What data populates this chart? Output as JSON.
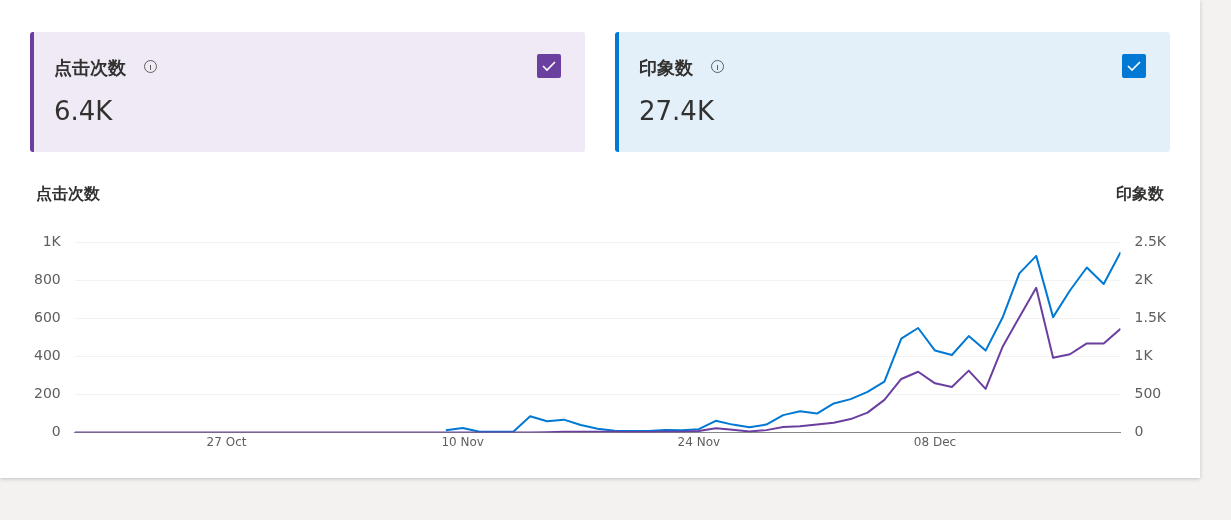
{
  "chart_data": [
    {
      "type": "other",
      "categories": [
        "点击次数",
        "印象数"
      ],
      "value_labels": [
        "6.4K",
        "27.4K"
      ],
      "colors": [
        "#6b3fa0",
        "#0078d4"
      ]
    },
    {
      "type": "line",
      "ylabel": "点击次数",
      "y2label": "印象数",
      "x": [
        "--10-18",
        "--10-19",
        "--10-20",
        "--10-21",
        "--10-22",
        "--10-23",
        "--10-24",
        "--10-25",
        "--10-26",
        "--10-27",
        "--10-28",
        "--10-29",
        "--10-30",
        "--10-31",
        "--11-01",
        "--11-02",
        "--11-03",
        "--11-04",
        "--11-05",
        "--11-06",
        "--11-07",
        "--11-08",
        "--11-09",
        "--11-10",
        "--11-11",
        "--11-12",
        "--11-13",
        "--11-14",
        "--11-15",
        "--11-16",
        "--11-17",
        "--11-18",
        "--11-19",
        "--11-20",
        "--11-21",
        "--11-22",
        "--11-23",
        "--11-24",
        "--11-25",
        "--11-26",
        "--11-27",
        "--11-28",
        "--11-29",
        "--11-30",
        "--12-01",
        "--12-02",
        "--12-03",
        "--12-04",
        "--12-05",
        "--12-06",
        "--12-07",
        "--12-08",
        "--12-09",
        "--12-10",
        "--12-11",
        "--12-12",
        "--12-13",
        "--12-14",
        "--12-15",
        "--12-16",
        "--12-17",
        "--12-18",
        "--12-19"
      ],
      "series": [
        {
          "color": "#6b3fa0",
          "values": [
            0,
            0,
            0,
            0,
            0,
            0,
            0,
            0,
            0,
            0,
            0,
            0,
            0,
            0,
            0,
            0,
            0,
            0,
            0,
            0,
            0,
            0,
            0,
            0,
            0,
            0,
            0,
            1,
            2,
            4,
            5,
            5,
            5,
            3,
            3,
            5,
            5,
            8,
            23,
            15,
            6,
            13,
            29,
            33,
            42,
            52,
            71,
            105,
            172,
            282,
            320,
            259,
            240,
            326,
            230,
            450,
            607,
            761,
            393,
            412,
            469,
            469,
            546
          ]
        },
        {
          "color": "#0078d4",
          "axis": "y2",
          "values": [
            null,
            null,
            null,
            null,
            null,
            null,
            null,
            null,
            null,
            null,
            null,
            null,
            null,
            null,
            null,
            null,
            null,
            null,
            null,
            null,
            null,
            null,
            30,
            60,
            10,
            10,
            10,
            215,
            150,
            170,
            100,
            50,
            25,
            20,
            20,
            35,
            30,
            45,
            155,
            105,
            70,
            105,
            230,
            280,
            250,
            383,
            440,
            536,
            670,
            1236,
            1375,
            1078,
            1020,
            1269,
            1078,
            1509,
            2093,
            2323,
            1518,
            1868,
            2170,
            1954,
            2371
          ]
        }
      ],
      "xlim": [
        "--10-18",
        "--12-19"
      ],
      "xticks": [
        {
          "value": "--10-27",
          "label": "27 Oct"
        },
        {
          "value": "--11-10",
          "label": "10 Nov"
        },
        {
          "value": "--11-24",
          "label": "24 Nov"
        },
        {
          "value": "--12-08",
          "label": "08 Dec"
        }
      ],
      "ylim": [
        0,
        1000
      ],
      "yticks": [
        0,
        200,
        400,
        600,
        800,
        {
          "value": 1000,
          "label": "1K"
        }
      ],
      "y2lim": [
        0,
        2500
      ],
      "y2ticks": [
        0,
        500,
        {
          "value": 1000,
          "label": "1K"
        },
        {
          "value": 1500,
          "label": "1.5K"
        },
        {
          "value": 2000,
          "label": "2K"
        },
        {
          "value": 2500,
          "label": "2.5K"
        }
      ],
      "grid": "y",
      "legend": false,
      "marker": "none",
      "line_style": "solid"
    }
  ]
}
